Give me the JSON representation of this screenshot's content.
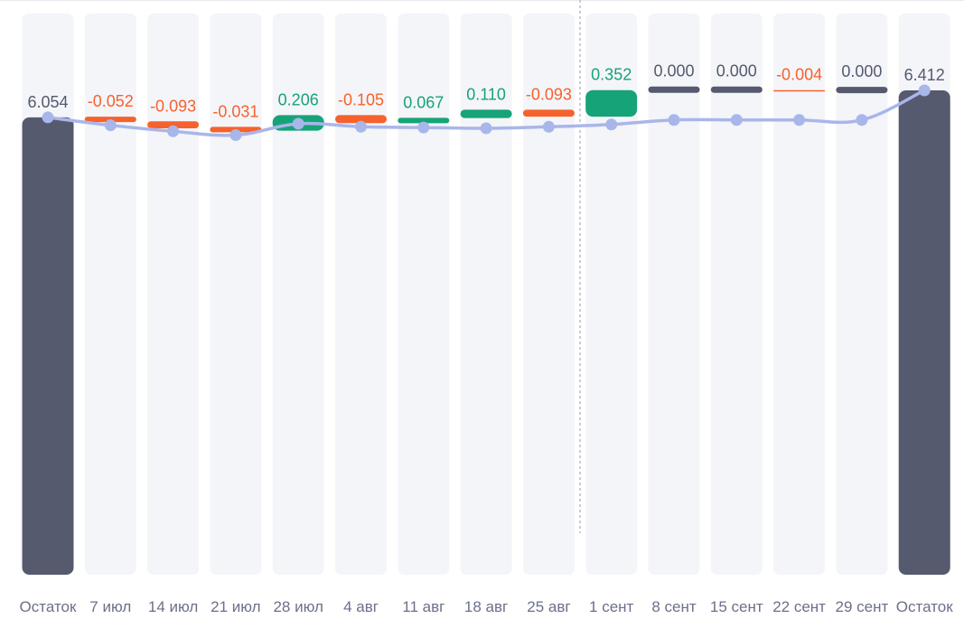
{
  "chart_data": {
    "type": "bar",
    "subtype": "waterfall",
    "categories": [
      "Остаток",
      "7 июл",
      "14 июл",
      "21 июл",
      "28 июл",
      "4 авг",
      "11 авг",
      "18 авг",
      "25 авг",
      "1 сент",
      "8 сент",
      "15 сент",
      "22 сент",
      "29 сент",
      "Остаток"
    ],
    "value_labels": [
      "6.054",
      "-0.052",
      "-0.093",
      "-0.031",
      "0.206",
      "-0.105",
      "0.067",
      "0.110",
      "-0.093",
      "0.352",
      "0.000",
      "0.000",
      "-0.004",
      "0.000",
      "6.412"
    ],
    "values": [
      6.054,
      -0.052,
      -0.093,
      -0.031,
      0.206,
      -0.105,
      0.067,
      0.11,
      -0.093,
      0.352,
      0.0,
      0.0,
      -0.004,
      0.0,
      6.412
    ],
    "kinds": [
      "total",
      "delta",
      "delta",
      "delta",
      "delta",
      "delta",
      "delta",
      "delta",
      "delta",
      "delta",
      "delta",
      "delta",
      "delta",
      "delta",
      "total"
    ],
    "line_values": [
      6.054,
      5.95,
      5.87,
      5.82,
      5.97,
      5.93,
      5.92,
      5.91,
      5.93,
      5.96,
      6.02,
      6.02,
      6.02,
      6.02,
      6.412
    ],
    "divider_after_index": 8,
    "ylim": [
      0,
      6.412
    ],
    "grid": false,
    "legend": "none",
    "colors": {
      "total": "#555a6e",
      "positive": "#16a378",
      "negative": "#f5622d",
      "zero": "#555a6e",
      "line": "#a9b6ea",
      "column_bg": "#f4f5f9",
      "label_dark": "#555a6e",
      "divider": "#b9bccb"
    }
  }
}
